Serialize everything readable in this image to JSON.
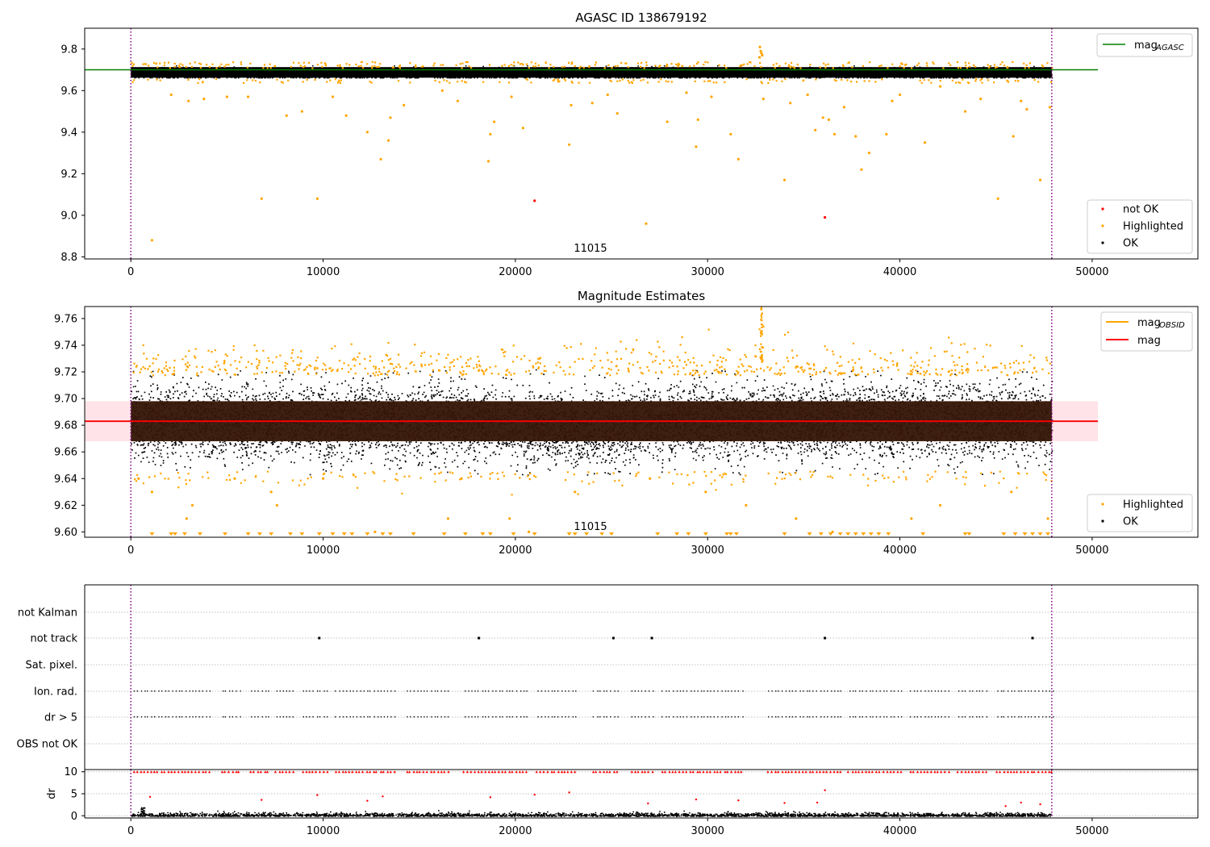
{
  "colors": {
    "ok": "#000000",
    "highlighted": "#ffa500",
    "not_ok": "#ff0000",
    "agasc_line": "#008000",
    "mean_line": "#ff0000",
    "band": "#ffc0cb",
    "obs_boundary": "#800080",
    "grid": "#b0b0b0"
  },
  "chart_data": [
    {
      "type": "scatter",
      "title": "AGASC ID 138679192",
      "xlim": [
        -2400,
        55500
      ],
      "ylim": [
        8.79,
        9.9
      ],
      "xticks": [
        0,
        10000,
        20000,
        30000,
        40000,
        50000
      ],
      "yticks": [
        8.8,
        9.0,
        9.2,
        9.4,
        9.6,
        9.8
      ],
      "tick_labels_x": [
        "0",
        "10000",
        "20000",
        "30000",
        "40000",
        "50000"
      ],
      "tick_labels_y": [
        "8.8",
        "9.0",
        "9.2",
        "9.4",
        "9.6",
        "9.8"
      ],
      "obsid_label": "11015",
      "obs_boundaries": [
        0,
        47900
      ],
      "mag_agasc": 9.7,
      "mag_agasc_xrange": [
        -2400,
        50300
      ],
      "ok_band": {
        "center": 9.683,
        "halfwidth": 0.025,
        "xrange": [
          0,
          47900
        ]
      },
      "series": [
        {
          "name": "not OK",
          "points": [
            [
              21000,
              9.07
            ],
            [
              36100,
              8.99
            ]
          ]
        },
        {
          "name": "Highlighted",
          "points": [
            [
              1100,
              8.88
            ],
            [
              6800,
              9.08
            ],
            [
              9700,
              9.08
            ],
            [
              18600,
              9.26
            ],
            [
              26800,
              8.96
            ],
            [
              45100,
              9.08
            ],
            [
              34000,
              9.17
            ],
            [
              38000,
              9.22
            ],
            [
              47300,
              9.17
            ],
            [
              13000,
              9.27
            ],
            [
              29400,
              9.33
            ],
            [
              31600,
              9.27
            ],
            [
              22800,
              9.34
            ],
            [
              41300,
              9.35
            ],
            [
              38400,
              9.3
            ],
            [
              13400,
              9.36
            ],
            [
              8100,
              9.48
            ],
            [
              8900,
              9.5
            ],
            [
              11200,
              9.48
            ],
            [
              12300,
              9.4
            ],
            [
              13500,
              9.47
            ],
            [
              14200,
              9.53
            ],
            [
              18700,
              9.39
            ],
            [
              18900,
              9.45
            ],
            [
              20400,
              9.42
            ],
            [
              22900,
              9.53
            ],
            [
              24000,
              9.54
            ],
            [
              25300,
              9.49
            ],
            [
              27900,
              9.45
            ],
            [
              29500,
              9.46
            ],
            [
              31200,
              9.39
            ],
            [
              34300,
              9.54
            ],
            [
              35600,
              9.41
            ],
            [
              36000,
              9.47
            ],
            [
              36300,
              9.46
            ],
            [
              36600,
              9.39
            ],
            [
              37100,
              9.52
            ],
            [
              37700,
              9.38
            ],
            [
              39300,
              9.39
            ],
            [
              39600,
              9.55
            ],
            [
              43400,
              9.5
            ],
            [
              45900,
              9.38
            ],
            [
              46600,
              9.51
            ],
            [
              47800,
              9.52
            ],
            [
              2100,
              9.58
            ],
            [
              3000,
              9.55
            ],
            [
              3800,
              9.56
            ],
            [
              5000,
              9.57
            ],
            [
              6100,
              9.57
            ],
            [
              10500,
              9.57
            ],
            [
              16200,
              9.6
            ],
            [
              17000,
              9.55
            ],
            [
              19800,
              9.57
            ],
            [
              24800,
              9.58
            ],
            [
              28900,
              9.59
            ],
            [
              30200,
              9.57
            ],
            [
              32900,
              9.56
            ],
            [
              35200,
              9.58
            ],
            [
              40000,
              9.58
            ],
            [
              42100,
              9.62
            ],
            [
              44200,
              9.56
            ],
            [
              46300,
              9.55
            ],
            [
              32720,
              9.81
            ],
            [
              32760,
              9.79
            ],
            [
              32800,
              9.78
            ],
            [
              32840,
              9.77
            ],
            [
              32700,
              9.76
            ]
          ]
        },
        {
          "name": "OK",
          "points": []
        }
      ],
      "legend_lines": [
        {
          "name": "mag",
          "subscript": "AGASC"
        }
      ],
      "legend_points": [
        "not OK",
        "Highlighted",
        "OK"
      ]
    },
    {
      "type": "scatter",
      "title": "Magnitude Estimates",
      "xlim": [
        -2400,
        55500
      ],
      "ylim": [
        9.596,
        9.769
      ],
      "xticks": [
        0,
        10000,
        20000,
        30000,
        40000,
        50000
      ],
      "yticks": [
        9.6,
        9.62,
        9.64,
        9.66,
        9.68,
        9.7,
        9.72,
        9.74,
        9.76
      ],
      "tick_labels_x": [
        "0",
        "10000",
        "20000",
        "30000",
        "40000",
        "50000"
      ],
      "tick_labels_y": [
        "9.60",
        "9.62",
        "9.64",
        "9.66",
        "9.68",
        "9.70",
        "9.72",
        "9.74",
        "9.76"
      ],
      "obsid_label": "11015",
      "obs_boundaries": [
        0,
        47900
      ],
      "mag": 9.683,
      "mag_obsid": 9.683,
      "mag_std": 0.015,
      "band_xrange": [
        -2400,
        50300
      ],
      "series": [
        {
          "name": "Highlighted",
          "points": [
            [
              400,
              9.64
            ],
            [
              1100,
              9.63
            ],
            [
              2900,
              9.61
            ],
            [
              3200,
              9.62
            ],
            [
              5400,
              9.64
            ],
            [
              7300,
              9.63
            ],
            [
              7600,
              9.62
            ],
            [
              10000,
              9.64
            ],
            [
              12700,
              9.6
            ],
            [
              16500,
              9.61
            ],
            [
              17200,
              9.64
            ],
            [
              19700,
              9.61
            ],
            [
              20700,
              9.6
            ],
            [
              23100,
              9.63
            ],
            [
              27000,
              9.64
            ],
            [
              29900,
              9.63
            ],
            [
              32000,
              9.62
            ],
            [
              34600,
              9.61
            ],
            [
              36500,
              9.6
            ],
            [
              40600,
              9.61
            ],
            [
              42100,
              9.62
            ],
            [
              45800,
              9.63
            ],
            [
              47700,
              9.61
            ]
          ]
        },
        {
          "name": "OK",
          "points": []
        }
      ],
      "clipped_low_x": [
        1100,
        2100,
        2300,
        2800,
        3600,
        4900,
        6100,
        6700,
        7300,
        8300,
        8900,
        9800,
        10500,
        11100,
        11500,
        12300,
        13100,
        13500,
        14700,
        16300,
        17400,
        18300,
        18700,
        19900,
        21000,
        22800,
        23100,
        23700,
        24500,
        25000,
        27400,
        28400,
        29000,
        29900,
        31000,
        31200,
        31500,
        34000,
        35300,
        35900,
        36400,
        36900,
        37300,
        37700,
        38100,
        38500,
        38900,
        39400,
        41200,
        43400,
        43600,
        45400,
        46000,
        46500,
        46900,
        47300,
        47700
      ],
      "legend_lines": [
        {
          "name": "mag",
          "subscript": "OBSID"
        },
        {
          "name": "mag",
          "subscript": ""
        }
      ],
      "legend_points": [
        "Highlighted",
        "OK"
      ]
    },
    {
      "type": "scatter",
      "title": "",
      "xlim": [
        -2400,
        55500
      ],
      "categories": [
        "not Kalman",
        "not track",
        "Sat. pixel.",
        "Ion. rad.",
        "dr > 5",
        "OBS not OK"
      ],
      "obs_boundaries": [
        0,
        47900
      ],
      "not_track_x": [
        9800,
        18100,
        25100,
        27100,
        36100,
        46900
      ],
      "flag_segments": [
        [
          100,
          4200
        ],
        [
          4700,
          5700
        ],
        [
          6200,
          7100
        ],
        [
          7500,
          8500
        ],
        [
          8900,
          10200
        ],
        [
          10600,
          13800
        ],
        [
          14300,
          16600
        ],
        [
          17300,
          20600
        ],
        [
          21100,
          23100
        ],
        [
          24000,
          25400
        ],
        [
          26000,
          27100
        ],
        [
          27600,
          31800
        ],
        [
          33100,
          36900
        ],
        [
          37300,
          40000
        ],
        [
          40500,
          42600
        ],
        [
          43000,
          44500
        ],
        [
          45000,
          47900
        ]
      ]
    },
    {
      "type": "scatter",
      "title": "",
      "xlim": [
        -2400,
        55500
      ],
      "ylim": [
        -0.5,
        10.5
      ],
      "ylabel": "dr",
      "yticks": [
        0,
        5,
        10
      ],
      "tick_labels_y": [
        "0",
        "5",
        "10"
      ],
      "xticks": [
        0,
        10000,
        20000,
        30000,
        40000,
        50000
      ],
      "tick_labels_x": [
        "0",
        "10000",
        "20000",
        "30000",
        "40000",
        "50000"
      ],
      "obs_boundaries": [
        0,
        47900
      ],
      "dr_outliers": [
        [
          1000,
          4.3
        ],
        [
          6800,
          3.6
        ],
        [
          9700,
          4.7
        ],
        [
          12300,
          3.4
        ],
        [
          13100,
          4.4
        ],
        [
          18700,
          4.2
        ],
        [
          21000,
          4.8
        ],
        [
          22800,
          5.3
        ],
        [
          26900,
          2.8
        ],
        [
          29400,
          3.7
        ],
        [
          31600,
          3.5
        ],
        [
          34000,
          2.9
        ],
        [
          35700,
          3.0
        ],
        [
          36100,
          5.8
        ],
        [
          45500,
          2.2
        ],
        [
          46300,
          3.0
        ],
        [
          47300,
          2.6
        ]
      ]
    }
  ]
}
